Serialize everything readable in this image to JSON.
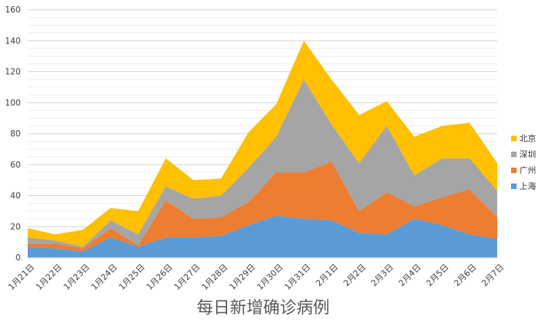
{
  "chart_data": {
    "type": "area",
    "stacked": true,
    "title": "每日新增确诊病例",
    "categories": [
      "1月21日",
      "1月22日",
      "1月23日",
      "1月24日",
      "1月25日",
      "1月26日",
      "1月27日",
      "1月28日",
      "1月29日",
      "1月30日",
      "1月31日",
      "2月1日",
      "2月2日",
      "2月3日",
      "2月4日",
      "2月5日",
      "2月6日",
      "2月7日"
    ],
    "series": [
      {
        "name": "上海",
        "color": "#5B9BD5",
        "values": [
          7,
          6,
          4,
          13,
          7,
          13,
          13,
          14,
          21,
          27,
          25,
          24,
          16,
          15,
          25,
          21,
          15,
          12
        ]
      },
      {
        "name": "广州",
        "color": "#ED7D31",
        "values": [
          2,
          3,
          2,
          6,
          1,
          24,
          12,
          12,
          15,
          28,
          30,
          38,
          14,
          27,
          8,
          18,
          29,
          14
        ]
      },
      {
        "name": "深圳",
        "color": "#A5A5A5",
        "values": [
          4,
          2,
          1,
          5,
          7,
          9,
          13,
          14,
          22,
          23,
          60,
          24,
          31,
          43,
          20,
          25,
          20,
          17
        ]
      },
      {
        "name": "北京",
        "color": "#FFC000",
        "values": [
          6,
          4,
          11,
          8,
          15,
          18,
          12,
          11,
          23,
          21,
          25,
          29,
          31,
          16,
          25,
          21,
          23,
          18
        ]
      }
    ],
    "y_ticks": [
      "0",
      "20",
      "40",
      "60",
      "80",
      "100",
      "120",
      "140",
      "160"
    ],
    "ylim": [
      0,
      160
    ],
    "legend_position": "right",
    "grid": true
  }
}
